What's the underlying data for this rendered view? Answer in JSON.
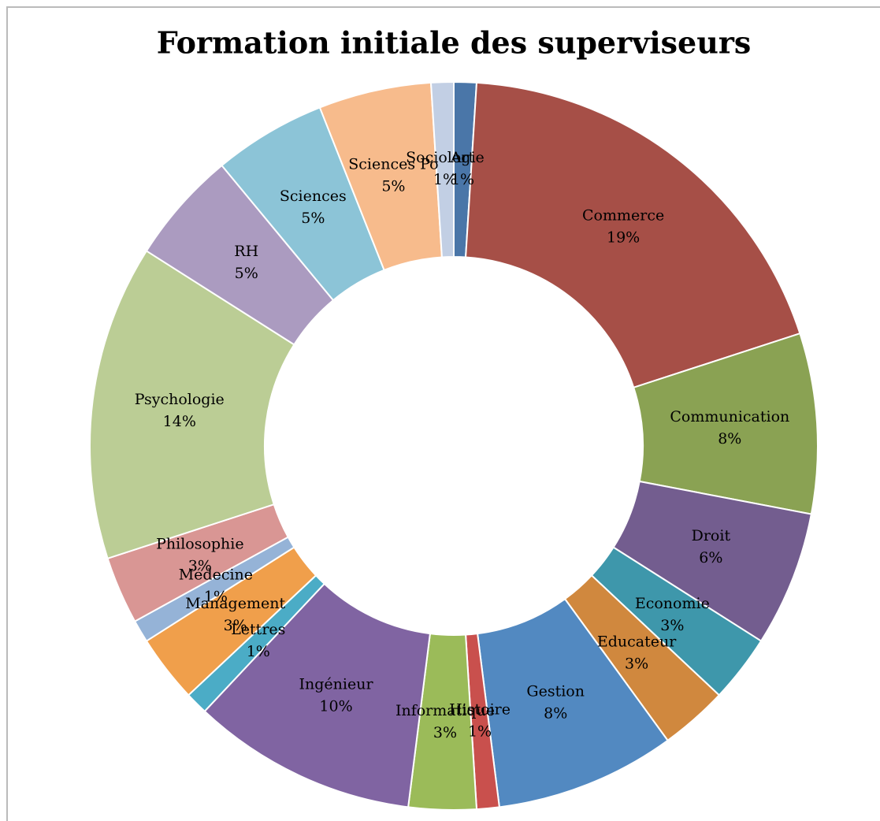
{
  "chart_data": {
    "type": "donut",
    "title": "Formation initiale des superviseurs",
    "categories": [
      "Art",
      "Commerce",
      "Communication",
      "Droit",
      "Economie",
      "Educateur",
      "Gestion",
      "Histoire",
      "Informatique",
      "Ingénieur",
      "Lettres",
      "Management",
      "Médecine",
      "Philosophie",
      "Psychologie",
      "RH",
      "Sciences",
      "Sciences Po",
      "Sociologie"
    ],
    "values": [
      1,
      19,
      8,
      6,
      3,
      3,
      8,
      1,
      3,
      10,
      1,
      3,
      1,
      3,
      14,
      5,
      5,
      5,
      1
    ],
    "value_labels": [
      "1%",
      "19%",
      "8%",
      "6%",
      "3%",
      "3%",
      "8%",
      "1%",
      "3%",
      "10%",
      "1%",
      "3%",
      "1%",
      "3%",
      "14%",
      "5%",
      "5%",
      "5%",
      "1%"
    ],
    "colors": [
      "#4a76a8",
      "#a64f47",
      "#8aa253",
      "#735d8f",
      "#3e97ab",
      "#d0883e",
      "#5289c1",
      "#c9504d",
      "#9bbb59",
      "#8064a2",
      "#4bacc6",
      "#f09f4b",
      "#95b3d7",
      "#d99694",
      "#bbcd95",
      "#ab9bc0",
      "#8cc4d7",
      "#f7bb8c",
      "#c2cfe4"
    ]
  }
}
